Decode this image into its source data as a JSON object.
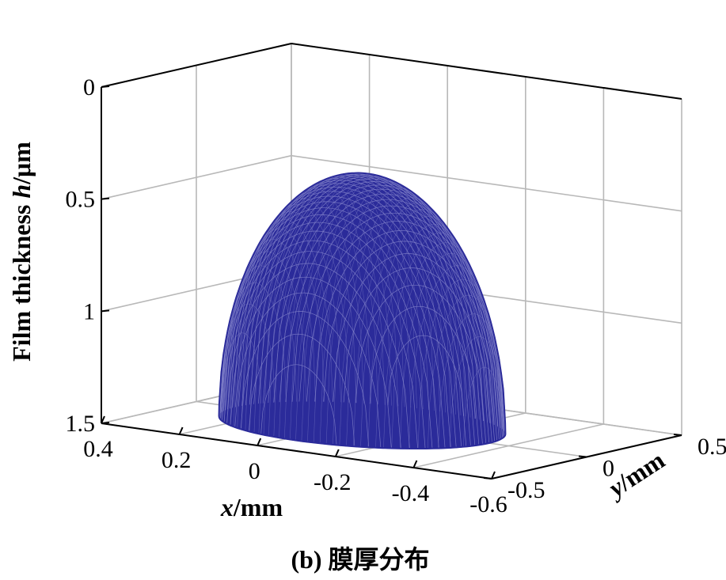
{
  "chart_data": {
    "type": "surface",
    "caption": "(b) 膜厚分布",
    "xlabel": {
      "var": "x",
      "unit": "/mm"
    },
    "ylabel": {
      "var": "y",
      "unit": "/mm"
    },
    "zlabel": {
      "prefix": "Film thickness ",
      "var": "h",
      "unit": "/μm"
    },
    "xlim": [
      -0.6,
      0.4
    ],
    "ylim": [
      -0.5,
      0.5
    ],
    "zlim": [
      0,
      1.5
    ],
    "z_reversed": true,
    "x_ticks": [
      "0.4",
      "0.2",
      "0",
      "-0.2",
      "-0.4",
      "-0.6"
    ],
    "x_tick_values": [
      0.4,
      0.2,
      0,
      -0.2,
      -0.4,
      -0.6
    ],
    "y_ticks": [
      "-0.5",
      "0",
      "0.5"
    ],
    "y_tick_values": [
      -0.5,
      0,
      0.5
    ],
    "z_ticks": [
      "0",
      "0.5",
      "1",
      "1.5"
    ],
    "z_tick_values": [
      0,
      0.5,
      1,
      1.5
    ],
    "grid": true,
    "surface": {
      "color": "#2b2b9a",
      "description_free": true,
      "x_range": [
        -0.35,
        0.3
      ],
      "y_range": [
        -0.35,
        0.35
      ],
      "h_min": 0.38,
      "h_max": 1.5
    }
  }
}
